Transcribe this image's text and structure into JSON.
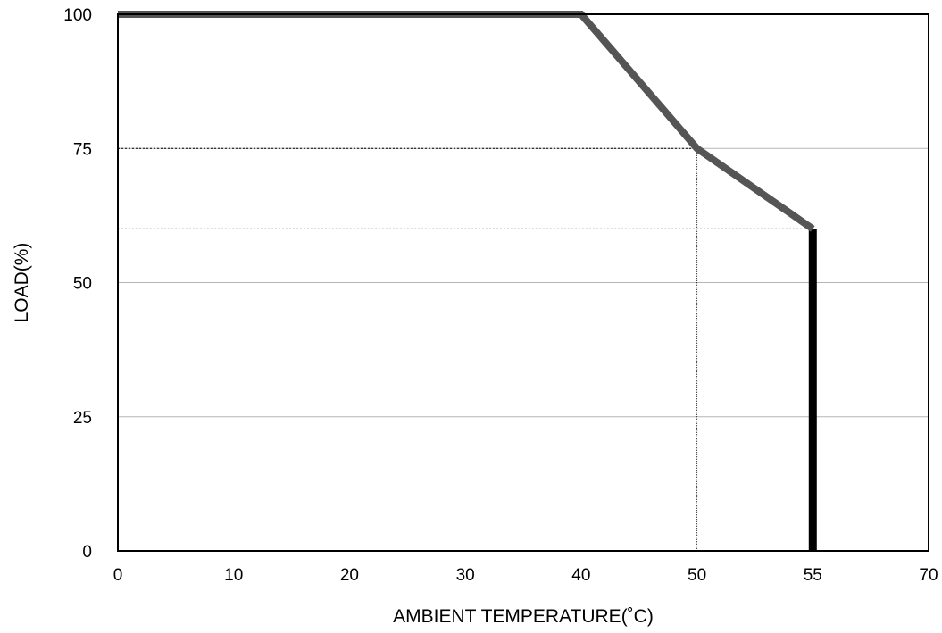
{
  "chart_data": {
    "type": "line",
    "title": "",
    "xlabel": "AMBIENT TEMPERATURE(˚C)",
    "ylabel": "LOAD(%)",
    "x_ticks": [
      {
        "value": 0,
        "label": "0"
      },
      {
        "value": 10,
        "label": "10"
      },
      {
        "value": 20,
        "label": "20"
      },
      {
        "value": 30,
        "label": "30"
      },
      {
        "value": 40,
        "label": "40"
      },
      {
        "value": 50,
        "label": "50"
      },
      {
        "value": 55,
        "label": "55"
      },
      {
        "value": 70,
        "label": "70"
      }
    ],
    "y_ticks": [
      {
        "value": 0,
        "label": "0"
      },
      {
        "value": 25,
        "label": "25"
      },
      {
        "value": 50,
        "label": "50"
      },
      {
        "value": 75,
        "label": "75"
      },
      {
        "value": 100,
        "label": "100"
      }
    ],
    "x_breaks": [
      0,
      10,
      20,
      30,
      40,
      50,
      55,
      70
    ],
    "xlim": [
      0,
      70
    ],
    "ylim": [
      0,
      100
    ],
    "grid": "horizontal",
    "series": [
      {
        "x": [
          0,
          40,
          50,
          55
        ],
        "y": [
          100,
          100,
          75,
          60
        ],
        "color": "#555555"
      }
    ],
    "cutoff": {
      "x": 55,
      "y": [
        0,
        60
      ],
      "color": "#000000"
    },
    "reference_lines": [
      {
        "type": "horizontal",
        "y": 75,
        "x_to": 50
      },
      {
        "type": "horizontal",
        "y": 60,
        "x_to": 55
      },
      {
        "type": "vertical",
        "x": 50,
        "y_to": 75
      }
    ]
  }
}
